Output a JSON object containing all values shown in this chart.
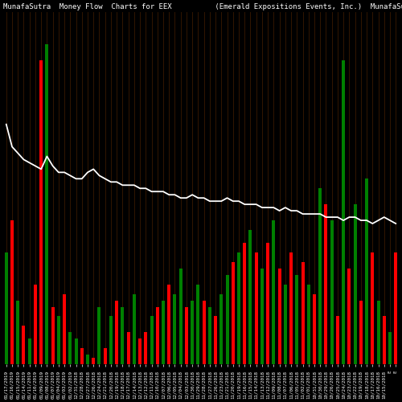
{
  "title": "MunafaSutra  Money Flow  Charts for EEX          (Emerald Expositions Events, Inc.)  MunafaSutra.com",
  "background_color": "#000000",
  "grid_color": "#3a1a00",
  "categories": [
    "01/17/2019",
    "01/16/2019",
    "01/15/2019",
    "01/14/2019",
    "01/11/2019",
    "01/10/2019",
    "01/09/2019",
    "01/08/2019",
    "01/07/2019",
    "01/04/2019",
    "01/03/2019",
    "01/02/2019",
    "12/31/2018",
    "12/28/2018",
    "12/27/2018",
    "12/26/2018",
    "12/24/2018",
    "12/21/2018",
    "12/20/2018",
    "12/19/2018",
    "12/18/2018",
    "12/17/2018",
    "12/14/2018",
    "12/13/2018",
    "12/12/2018",
    "12/11/2018",
    "12/10/2018",
    "12/07/2018",
    "12/06/2018",
    "12/05/2018",
    "12/04/2018",
    "12/03/2018",
    "11/30/2018",
    "11/29/2018",
    "11/28/2018",
    "11/27/2018",
    "11/26/2018",
    "11/23/2018",
    "11/21/2018",
    "11/20/2018",
    "11/19/2018",
    "11/16/2018",
    "11/15/2018",
    "11/14/2018",
    "11/13/2018",
    "11/12/2018",
    "11/09/2018",
    "11/08/2018",
    "11/07/2018",
    "11/06/2018",
    "11/05/2018",
    "11/02/2018",
    "11/01/2018",
    "10/31/2018",
    "10/30/2018",
    "10/29/2018",
    "10/26/2018",
    "10/25/2018",
    "10/24/2018",
    "10/23/2018",
    "10/22/2018",
    "10/19/2018",
    "10/18/2018",
    "10/17/2018",
    "10/16/2018",
    "10/15/2018",
    "E",
    "E"
  ],
  "bar_heights": [
    35,
    45,
    20,
    12,
    8,
    25,
    95,
    100,
    18,
    15,
    22,
    10,
    8,
    5,
    3,
    2,
    18,
    5,
    15,
    20,
    18,
    10,
    22,
    8,
    10,
    15,
    18,
    20,
    25,
    22,
    30,
    18,
    20,
    25,
    20,
    18,
    15,
    22,
    28,
    32,
    35,
    38,
    42,
    35,
    30,
    38,
    45,
    30,
    25,
    35,
    28,
    32,
    25,
    22,
    55,
    50,
    45,
    15,
    95,
    30,
    50,
    20,
    58,
    35,
    20,
    15,
    10,
    35
  ],
  "bar_colors": [
    "green",
    "red",
    "green",
    "red",
    "green",
    "red",
    "red",
    "green",
    "red",
    "green",
    "red",
    "green",
    "green",
    "red",
    "green",
    "red",
    "green",
    "red",
    "green",
    "red",
    "green",
    "red",
    "green",
    "red",
    "red",
    "green",
    "red",
    "green",
    "red",
    "green",
    "green",
    "red",
    "green",
    "green",
    "red",
    "green",
    "red",
    "green",
    "green",
    "red",
    "green",
    "red",
    "green",
    "red",
    "green",
    "red",
    "green",
    "red",
    "green",
    "red",
    "green",
    "red",
    "green",
    "red",
    "green",
    "red",
    "green",
    "red",
    "green",
    "red",
    "green",
    "red",
    "green",
    "red",
    "green",
    "red",
    "green",
    "red"
  ],
  "line_values": [
    75,
    68,
    66,
    64,
    63,
    62,
    61,
    65,
    62,
    60,
    60,
    59,
    58,
    58,
    60,
    61,
    59,
    58,
    57,
    57,
    56,
    56,
    56,
    55,
    55,
    54,
    54,
    54,
    53,
    53,
    52,
    52,
    53,
    52,
    52,
    51,
    51,
    51,
    52,
    51,
    51,
    50,
    50,
    50,
    49,
    49,
    49,
    48,
    49,
    48,
    48,
    47,
    47,
    47,
    47,
    46,
    46,
    46,
    45,
    46,
    46,
    45,
    45,
    44,
    45,
    46,
    45,
    44
  ],
  "line_color": "#ffffff",
  "title_fontsize": 6.5,
  "tick_fontsize": 4.2,
  "title_color": "#ffffff",
  "tick_color": "#ffffff",
  "ylim": [
    0,
    110
  ],
  "bar_width": 0.55
}
